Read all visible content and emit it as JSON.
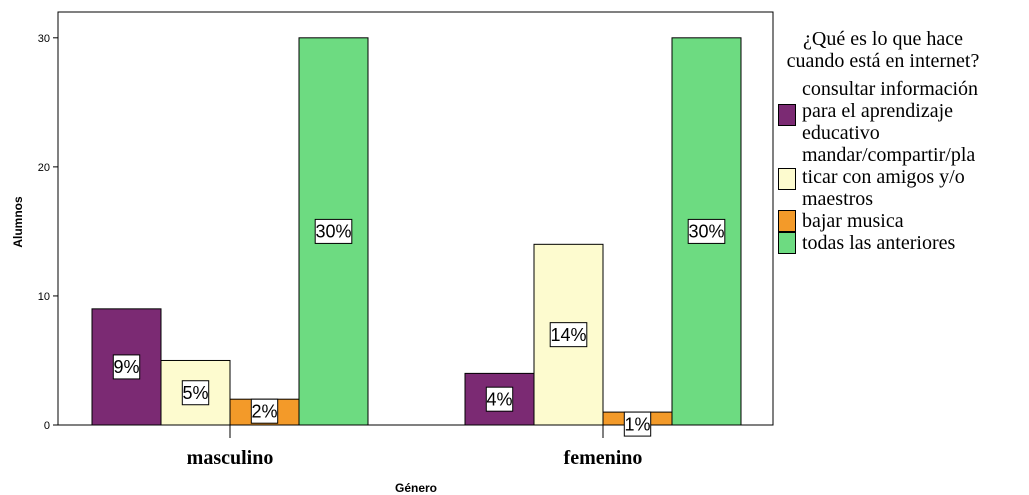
{
  "chart_data": {
    "type": "bar",
    "categories": [
      "masculino",
      "femenino"
    ],
    "series": [
      {
        "name": "consultar información para el aprendizaje educativo",
        "color": "#7b2a73",
        "values": [
          9,
          4
        ],
        "labels": [
          "9%",
          "4%"
        ]
      },
      {
        "name": "mandar/compartir/pla ticar con amigos y/o maestros",
        "color": "#fdfbcf",
        "values": [
          5,
          14
        ],
        "labels": [
          "5%",
          "14%"
        ]
      },
      {
        "name": "bajar musica",
        "color": "#f39a29",
        "values": [
          2,
          1
        ],
        "labels": [
          "2%",
          "1%"
        ]
      },
      {
        "name": "todas las anteriores",
        "color": "#6ddb81",
        "values": [
          30,
          30
        ],
        "labels": [
          "30%",
          "30%"
        ]
      }
    ],
    "xlabel": "Género",
    "ylabel": "Alumnos",
    "ylim": [
      0,
      32
    ],
    "yticks": [
      0,
      10,
      20,
      30
    ],
    "grid": false,
    "legend_title": "¿Qué es lo que hace cuando está en internet?",
    "legend_labels": [
      "consultar información\npara el aprendizaje\neducativo",
      "mandar/compartir/pla\nticar con amigos y/o\nmaestros",
      "bajar musica",
      "todas las anteriores"
    ],
    "legend_position": "right"
  }
}
